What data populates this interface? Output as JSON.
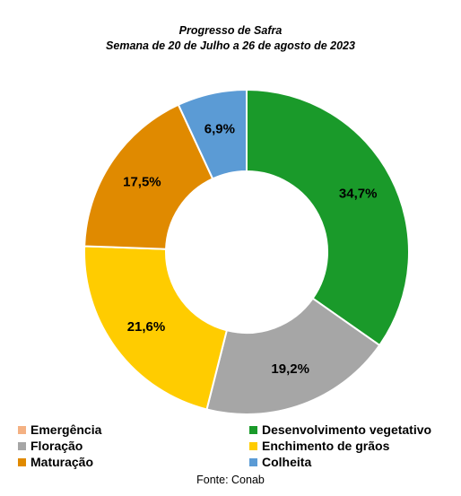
{
  "chart_data": {
    "type": "pie",
    "title": "Progresso de Safra",
    "subtitle": "Semana de 20 de Julho a 26 de agosto de 2023",
    "source": "Fonte: Conab",
    "legend_position": "bottom",
    "slices": [
      {
        "name": "Desenvolvimento vegetativo",
        "value": 34.7,
        "label": "34,7%",
        "color": "#1a9a2a"
      },
      {
        "name": "Floração",
        "value": 19.2,
        "label": "19,2%",
        "color": "#a6a6a6"
      },
      {
        "name": "Enchimento de grãos",
        "value": 21.6,
        "label": "21,6%",
        "color": "#ffcc00"
      },
      {
        "name": "Maturação",
        "value": 17.5,
        "label": "17,5%",
        "color": "#e08a00"
      },
      {
        "name": "Colheita",
        "value": 6.9,
        "label": "6,9%",
        "color": "#5b9bd5"
      }
    ],
    "legend": [
      {
        "name": "Emergência",
        "color": "#f4b183"
      },
      {
        "name": "Desenvolvimento vegetativo",
        "color": "#1a9a2a"
      },
      {
        "name": "Floração",
        "color": "#a6a6a6"
      },
      {
        "name": "Enchimento de grãos",
        "color": "#ffcc00"
      },
      {
        "name": "Maturação",
        "color": "#e08a00"
      },
      {
        "name": "Colheita",
        "color": "#5b9bd5"
      }
    ]
  }
}
